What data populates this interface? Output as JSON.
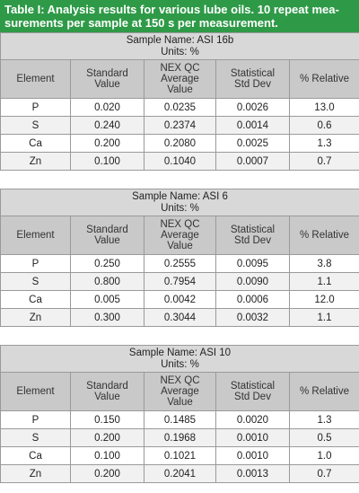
{
  "title_line1": "Table I: Analysis results for various lube oils. 10 repeat mea-",
  "title_line2": "surements per sample at 150 s per measurement.",
  "headers": {
    "element": "Element",
    "standard_value": [
      "Standard",
      "Value"
    ],
    "nex_qc": [
      "NEX QC",
      "Average",
      "Value"
    ],
    "std_dev": [
      "Statistical",
      "Std Dev"
    ],
    "relative": "% Relative"
  },
  "tables": [
    {
      "sample_name": "Sample Name: ASI 16b",
      "units": "Units: %",
      "rows": [
        {
          "element": "P",
          "standard": "0.020",
          "nex": "0.0235",
          "stddev": "0.0026",
          "relative": "13.0"
        },
        {
          "element": "S",
          "standard": "0.240",
          "nex": "0.2374",
          "stddev": "0.0014",
          "relative": "0.6"
        },
        {
          "element": "Ca",
          "standard": "0.200",
          "nex": "0.2080",
          "stddev": "0.0025",
          "relative": "1.3"
        },
        {
          "element": "Zn",
          "standard": "0.100",
          "nex": "0.1040",
          "stddev": "0.0007",
          "relative": "0.7"
        }
      ]
    },
    {
      "sample_name": "Sample Name: ASI 6",
      "units": "Units: %",
      "rows": [
        {
          "element": "P",
          "standard": "0.250",
          "nex": "0.2555",
          "stddev": "0.0095",
          "relative": "3.8"
        },
        {
          "element": "S",
          "standard": "0.800",
          "nex": "0.7954",
          "stddev": "0.0090",
          "relative": "1.1"
        },
        {
          "element": "Ca",
          "standard": "0.005",
          "nex": "0.0042",
          "stddev": "0.0006",
          "relative": "12.0"
        },
        {
          "element": "Zn",
          "standard": "0.300",
          "nex": "0.3044",
          "stddev": "0.0032",
          "relative": "1.1"
        }
      ]
    },
    {
      "sample_name": "Sample Name: ASI 10",
      "units": "Units: %",
      "rows": [
        {
          "element": "P",
          "standard": "0.150",
          "nex": "0.1485",
          "stddev": "0.0020",
          "relative": "1.3"
        },
        {
          "element": "S",
          "standard": "0.200",
          "nex": "0.1968",
          "stddev": "0.0010",
          "relative": "0.5"
        },
        {
          "element": "Ca",
          "standard": "0.100",
          "nex": "0.1021",
          "stddev": "0.0010",
          "relative": "1.0"
        },
        {
          "element": "Zn",
          "standard": "0.200",
          "nex": "0.2041",
          "stddev": "0.0013",
          "relative": "0.7"
        }
      ]
    }
  ],
  "colors": {
    "title_bg": "#2e9a47",
    "title_text": "#ffffff",
    "sample_bg": "#d8d8d8",
    "header_bg": "#c9c9c9",
    "alt_row_bg": "#f1f1f1"
  }
}
